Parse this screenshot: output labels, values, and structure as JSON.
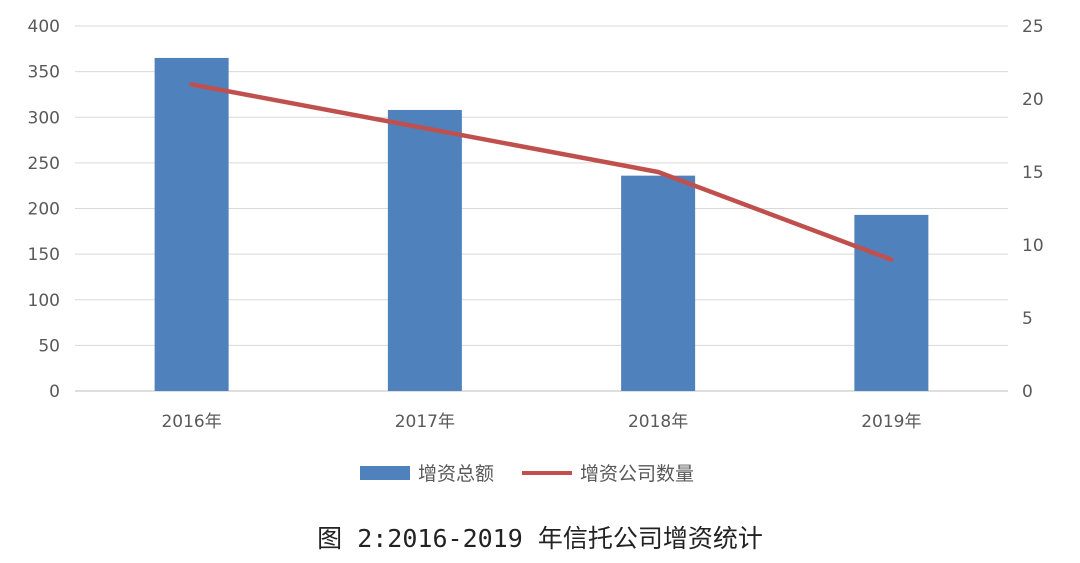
{
  "chart_data": {
    "type": "bar",
    "title": "",
    "caption": "图 2:2016-2019 年信托公司增资统计",
    "categories": [
      "2016年",
      "2017年",
      "2018年",
      "2019年"
    ],
    "series": [
      {
        "name": "增资总额",
        "type": "bar",
        "axis": "left",
        "color": "#4F81BD",
        "values": [
          365,
          308,
          236,
          193
        ]
      },
      {
        "name": "增资公司数量",
        "type": "line",
        "axis": "right",
        "color": "#C0504D",
        "values": [
          21,
          18,
          15,
          9
        ]
      }
    ],
    "y_left": {
      "min": 0,
      "max": 400,
      "step": 50,
      "ticks": [
        "0",
        "50",
        "100",
        "150",
        "200",
        "250",
        "300",
        "350",
        "400"
      ]
    },
    "y_right": {
      "min": 0,
      "max": 25,
      "step": 5,
      "ticks": [
        "0",
        "5",
        "10",
        "15",
        "20",
        "25"
      ]
    },
    "grid": true,
    "legend_position": "bottom"
  }
}
